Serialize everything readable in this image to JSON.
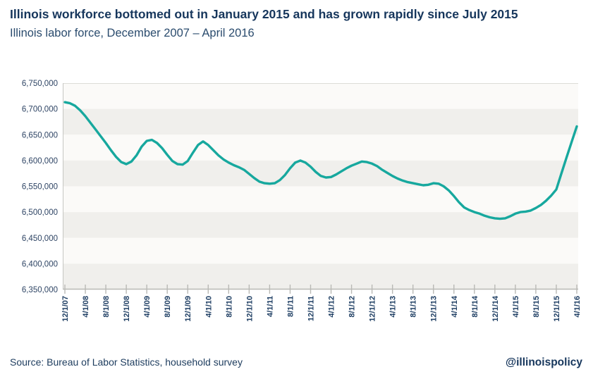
{
  "header": {
    "title": "Illinois workforce bottomed out in January 2015 and has grown rapidly since July 2015",
    "subtitle": "Illinois labor force, December 2007 – April 2016"
  },
  "footer": {
    "source": "Source: Bureau of Labor Statistics, household survey",
    "handle": "@illinoispolicy"
  },
  "theme": {
    "line_color": "#17a89e",
    "navy": "#16365c",
    "band_light": "#fbfaf8",
    "band_dark": "#f0efec",
    "axis_color": "#b9b9b5"
  },
  "chart_data": {
    "type": "line",
    "title": "Illinois workforce bottomed out in January 2015 and has grown rapidly since July 2015",
    "subtitle": "Illinois labor force, December 2007 – April 2016",
    "xlabel": "",
    "ylabel": "",
    "ylim": [
      6350000,
      6750000
    ],
    "grid": "alternating-horizontal-bands",
    "legend": "none",
    "y_ticks": [
      6750000,
      6700000,
      6650000,
      6600000,
      6550000,
      6500000,
      6450000,
      6400000,
      6350000
    ],
    "y_tick_labels": [
      "6,750,000",
      "6,700,000",
      "6,650,000",
      "6,600,000",
      "6,550,000",
      "6,500,000",
      "6,450,000",
      "6,400,000",
      "6,350,000"
    ],
    "x_tick_labels": [
      "12/1/07",
      "4/1/08",
      "8/1/08",
      "12/1/08",
      "4/1/09",
      "8/1/09",
      "12/1/09",
      "4/1/10",
      "8/1/10",
      "12/1/10",
      "4/1/11",
      "8/1/11",
      "12/1/11",
      "4/1/12",
      "8/1/12",
      "12/1/12",
      "4/1/13",
      "8/1/13",
      "12/1/13",
      "4/1/14",
      "8/1/14",
      "12/1/14",
      "4/1/15",
      "8/1/15",
      "12/1/15",
      "4/1/16"
    ],
    "x_tick_every": 4,
    "x": [
      "12/1/07",
      "1/1/08",
      "2/1/08",
      "3/1/08",
      "4/1/08",
      "5/1/08",
      "6/1/08",
      "7/1/08",
      "8/1/08",
      "9/1/08",
      "10/1/08",
      "11/1/08",
      "12/1/08",
      "1/1/09",
      "2/1/09",
      "3/1/09",
      "4/1/09",
      "5/1/09",
      "6/1/09",
      "7/1/09",
      "8/1/09",
      "9/1/09",
      "10/1/09",
      "11/1/09",
      "12/1/09",
      "1/1/10",
      "2/1/10",
      "3/1/10",
      "4/1/10",
      "5/1/10",
      "6/1/10",
      "7/1/10",
      "8/1/10",
      "9/1/10",
      "10/1/10",
      "11/1/10",
      "12/1/10",
      "1/1/11",
      "2/1/11",
      "3/1/11",
      "4/1/11",
      "5/1/11",
      "6/1/11",
      "7/1/11",
      "8/1/11",
      "9/1/11",
      "10/1/11",
      "11/1/11",
      "12/1/11",
      "1/1/12",
      "2/1/12",
      "3/1/12",
      "4/1/12",
      "5/1/12",
      "6/1/12",
      "7/1/12",
      "8/1/12",
      "9/1/12",
      "10/1/12",
      "11/1/12",
      "12/1/12",
      "1/1/13",
      "2/1/13",
      "3/1/13",
      "4/1/13",
      "5/1/13",
      "6/1/13",
      "7/1/13",
      "8/1/13",
      "9/1/13",
      "10/1/13",
      "11/1/13",
      "12/1/13",
      "1/1/14",
      "2/1/14",
      "3/1/14",
      "4/1/14",
      "5/1/14",
      "6/1/14",
      "7/1/14",
      "8/1/14",
      "9/1/14",
      "10/1/14",
      "11/1/14",
      "12/1/14",
      "1/1/15",
      "2/1/15",
      "3/1/15",
      "4/1/15",
      "5/1/15",
      "6/1/15",
      "7/1/15",
      "8/1/15",
      "9/1/15",
      "10/1/15",
      "11/1/15",
      "12/1/15",
      "1/1/16",
      "2/1/16",
      "3/1/16",
      "4/1/16"
    ],
    "values": [
      6713000,
      6711000,
      6706000,
      6697000,
      6686000,
      6673000,
      6660000,
      6647000,
      6634000,
      6620000,
      6607000,
      6597000,
      6593000,
      6598000,
      6610000,
      6627000,
      6638000,
      6640000,
      6634000,
      6624000,
      6611000,
      6599000,
      6593000,
      6592000,
      6599000,
      6615000,
      6630000,
      6637000,
      6630000,
      6620000,
      6610000,
      6602000,
      6596000,
      6591000,
      6587000,
      6582000,
      6574000,
      6566000,
      6559000,
      6556000,
      6555000,
      6556000,
      6562000,
      6572000,
      6585000,
      6596000,
      6600000,
      6596000,
      6588000,
      6578000,
      6570000,
      6567000,
      6568000,
      6573000,
      6579000,
      6585000,
      6590000,
      6594000,
      6598000,
      6597000,
      6594000,
      6589000,
      6582000,
      6576000,
      6570000,
      6565000,
      6561000,
      6558000,
      6556000,
      6554000,
      6552000,
      6553000,
      6556000,
      6555000,
      6550000,
      6542000,
      6531000,
      6519000,
      6509000,
      6504000,
      6500000,
      6497000,
      6493000,
      6490000,
      6488000,
      6487000,
      6488000,
      6492000,
      6497000,
      6500000,
      6501000,
      6503000,
      6508000,
      6514000,
      6522000,
      6532000,
      6544000,
      6575000,
      6606000,
      6636000,
      6666000
    ],
    "annotations": {
      "minimum": {
        "x": "1/1/15",
        "value": 6487000
      },
      "start": {
        "x": "12/1/07",
        "value": 6713000
      },
      "end": {
        "x": "4/1/16",
        "value": 6666000
      }
    }
  }
}
